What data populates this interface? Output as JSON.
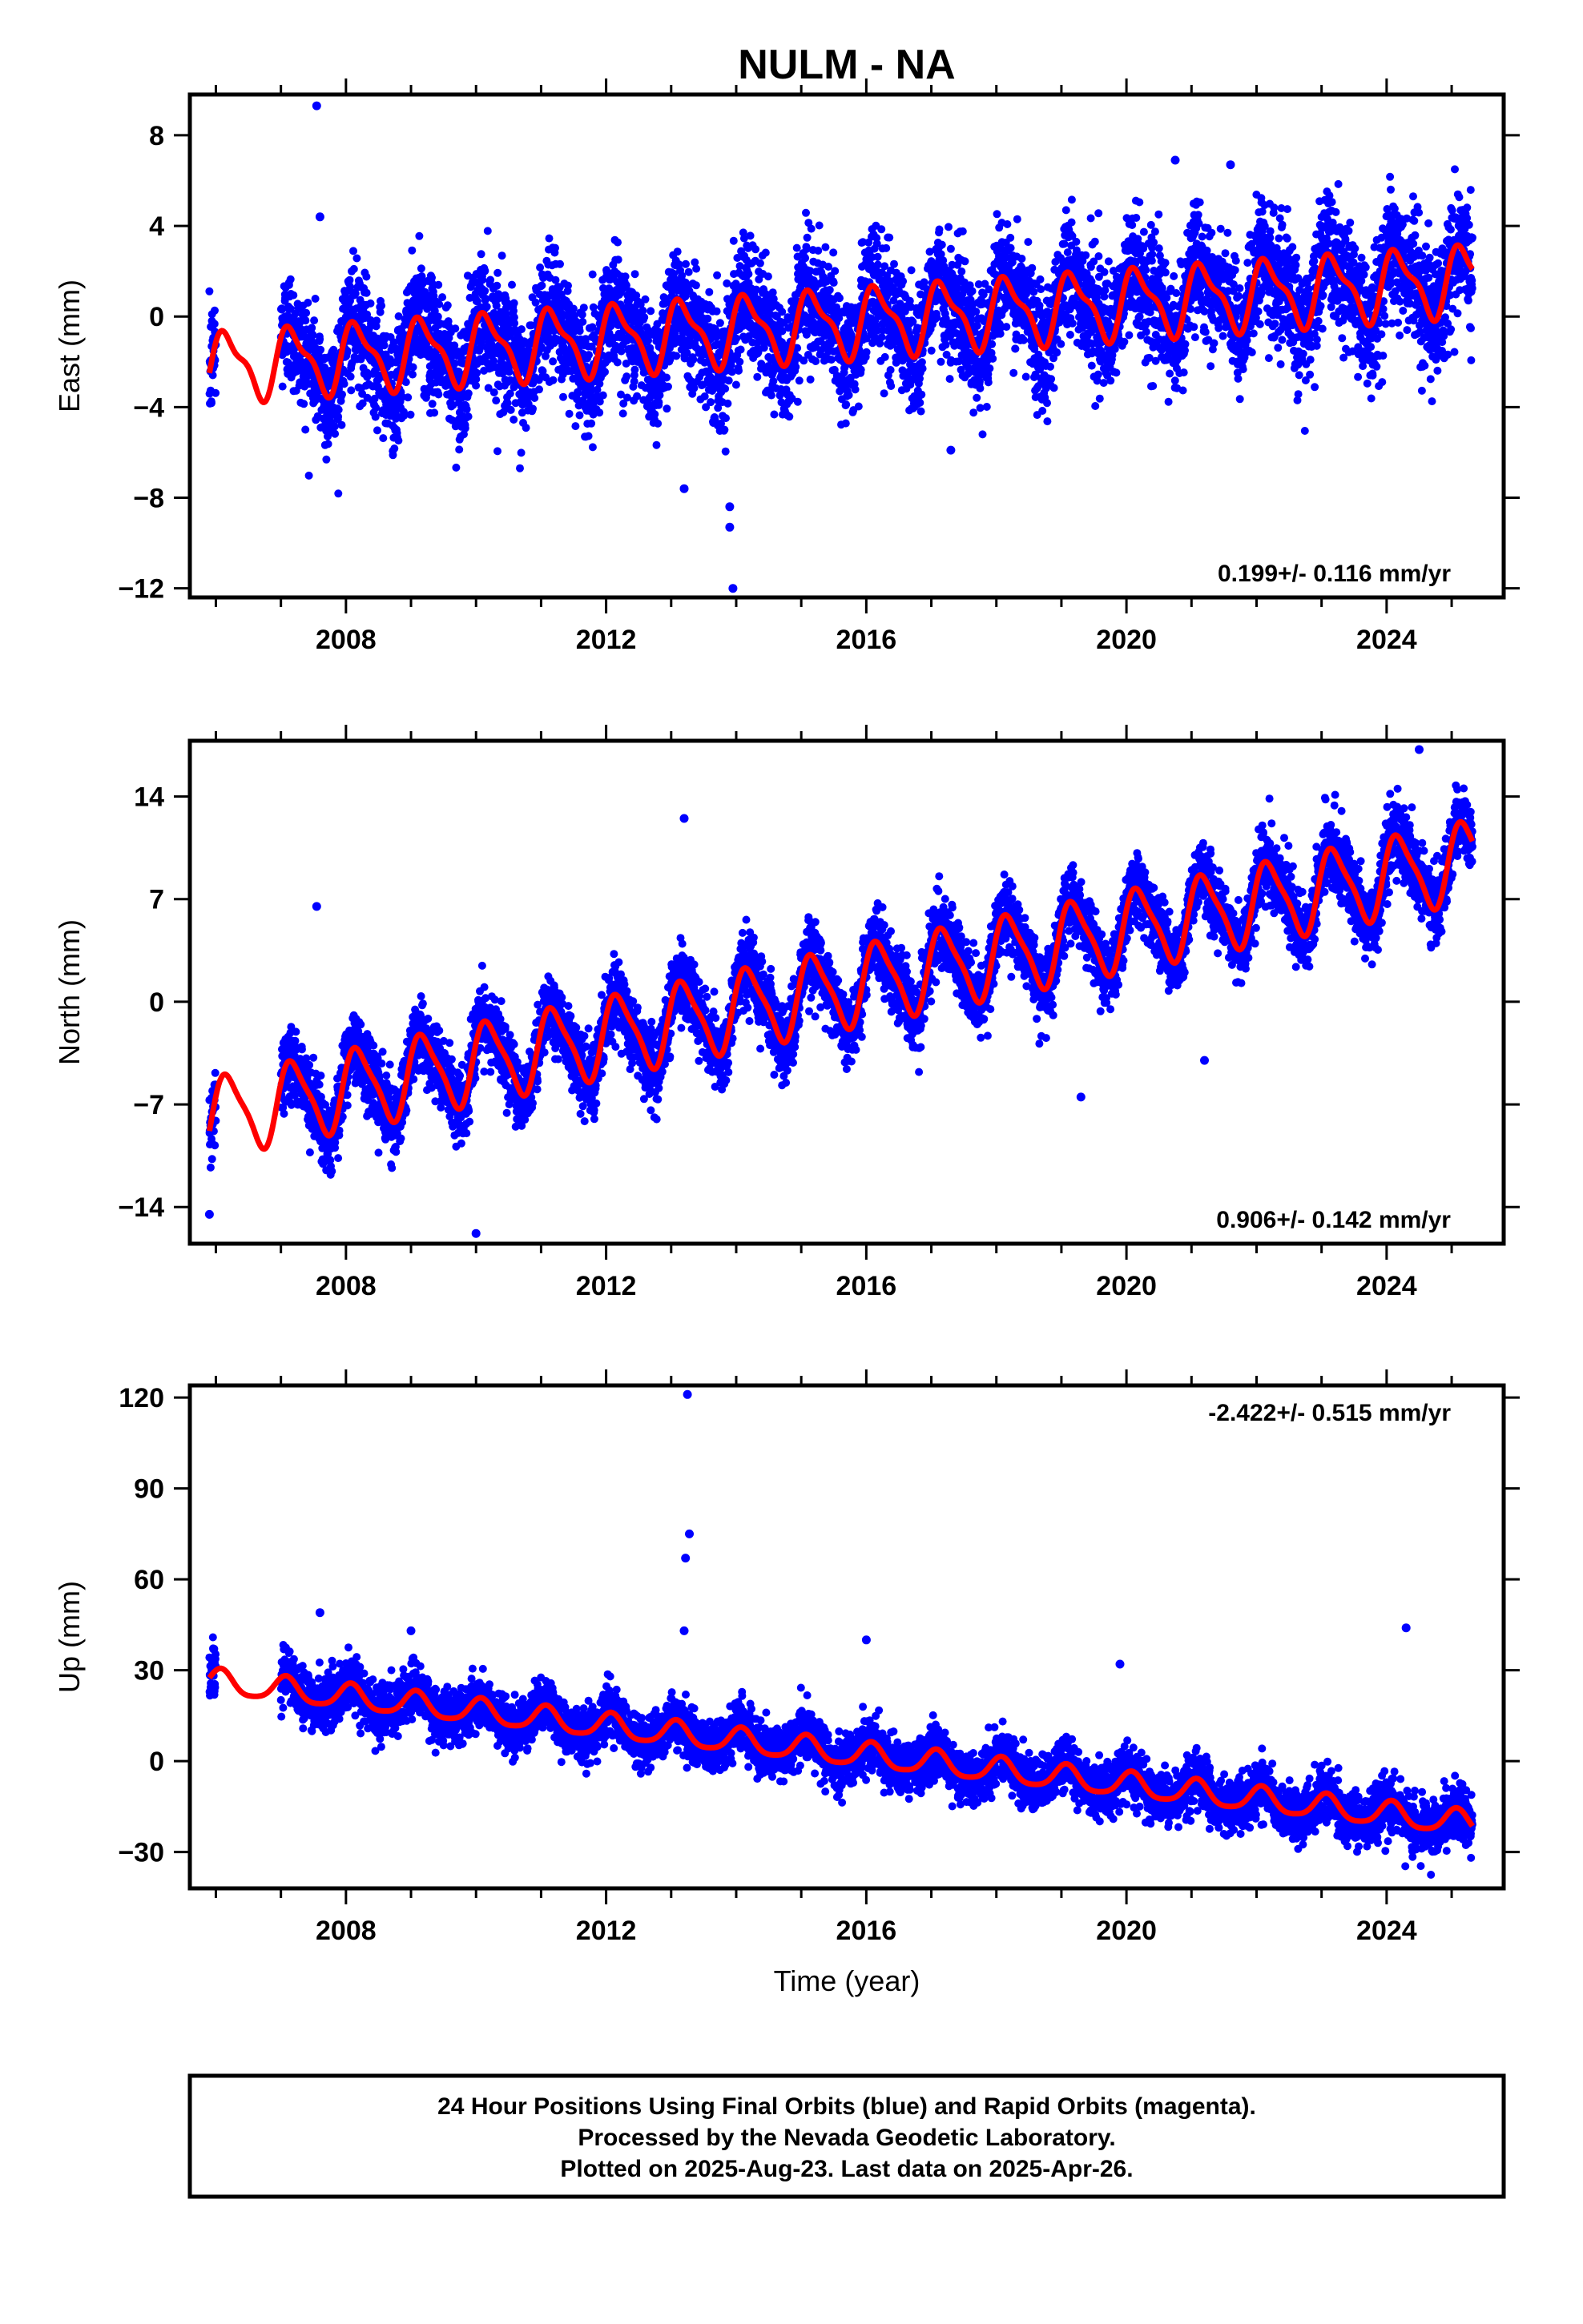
{
  "title": "NULM - NA",
  "caption": {
    "line1": "24 Hour Positions Using Final Orbits (blue) and Rapid Orbits (magenta).",
    "line2": "Processed by the Nevada Geodetic Laboratory.",
    "line3": "Plotted on 2025-Aug-23. Last data on 2025-Apr-26."
  },
  "colors": {
    "final_orbits": "#0000ff",
    "rapid_orbits": "#ff00ff",
    "model": "#ff0000",
    "frame": "#000000"
  },
  "chart_data": [
    {
      "type": "scatter",
      "ylabel": "East (mm)",
      "xlabel": "",
      "xlim": [
        2005.6,
        2025.8
      ],
      "ylim": [
        -12.4,
        9.8
      ],
      "xticks": [
        2008,
        2012,
        2016,
        2020,
        2024
      ],
      "yticks": [
        -12,
        -8,
        -4,
        0,
        4,
        8
      ],
      "rate_label": "0.199+/- 0.116 mm/yr",
      "rate_position": "bottom-right",
      "data_start": 2005.9,
      "data_end": 2025.32,
      "gap": [
        2006.0,
        2007.0
      ],
      "model": {
        "offset": -2.2,
        "slope": 0.199,
        "annual_amp": 1.4,
        "annual_phase": 0.45,
        "semiannual_amp": 0.5,
        "semiannual_phase": 1.2
      },
      "scatter_sd": 1.3,
      "outliers": [
        [
          2007.55,
          9.3
        ],
        [
          2007.6,
          4.4
        ],
        [
          2013.2,
          -7.6
        ],
        [
          2013.9,
          -8.4
        ],
        [
          2013.95,
          -12.0
        ],
        [
          2013.9,
          -9.3
        ],
        [
          2017.3,
          -5.9
        ],
        [
          2020.75,
          6.9
        ],
        [
          2021.6,
          6.7
        ]
      ]
    },
    {
      "type": "scatter",
      "ylabel": "North (mm)",
      "xlabel": "",
      "xlim": [
        2005.6,
        2025.8
      ],
      "ylim": [
        -16.5,
        17.8
      ],
      "xticks": [
        2008,
        2012,
        2016,
        2020,
        2024
      ],
      "yticks": [
        -14,
        -7,
        0,
        7,
        14
      ],
      "rate_label": "0.906+/- 0.142 mm/yr",
      "rate_position": "bottom-right",
      "data_start": 2005.9,
      "data_end": 2025.32,
      "gap": [
        2006.0,
        2007.0
      ],
      "model": {
        "offset": -7.8,
        "slope": 0.906,
        "annual_amp": 2.6,
        "annual_phase": 0.35,
        "semiannual_amp": 0.6,
        "semiannual_phase": 0.9
      },
      "scatter_sd": 1.2,
      "outliers": [
        [
          2007.55,
          6.5
        ],
        [
          2013.2,
          12.5
        ],
        [
          2010.0,
          -15.8
        ],
        [
          2005.9,
          -14.5
        ],
        [
          2019.3,
          -6.5
        ],
        [
          2021.2,
          -4.0
        ],
        [
          2024.5,
          17.2
        ]
      ]
    },
    {
      "type": "scatter",
      "ylabel": "Up (mm)",
      "xlabel": "Time (year)",
      "xlim": [
        2005.6,
        2025.8
      ],
      "ylim": [
        -42,
        124
      ],
      "xticks": [
        2008,
        2012,
        2016,
        2020,
        2024
      ],
      "yticks": [
        -30,
        0,
        30,
        60,
        90,
        120
      ],
      "rate_label": "-2.422+/- 0.515 mm/yr",
      "rate_position": "top-right",
      "data_start": 2005.9,
      "data_end": 2025.32,
      "gap": [
        2006.0,
        2007.0
      ],
      "model": {
        "offset": 26.0,
        "slope": -2.422,
        "annual_amp": 4.0,
        "annual_phase": 1.1,
        "semiannual_amp": 0.8,
        "semiannual_phase": 0.5
      },
      "scatter_sd": 4.2,
      "outliers": [
        [
          2013.25,
          121
        ],
        [
          2013.28,
          75
        ],
        [
          2013.22,
          67
        ],
        [
          2007.6,
          49
        ],
        [
          2013.2,
          43
        ],
        [
          2024.3,
          44
        ],
        [
          2009.0,
          43
        ],
        [
          2019.9,
          32
        ],
        [
          2016.0,
          40
        ]
      ]
    }
  ]
}
